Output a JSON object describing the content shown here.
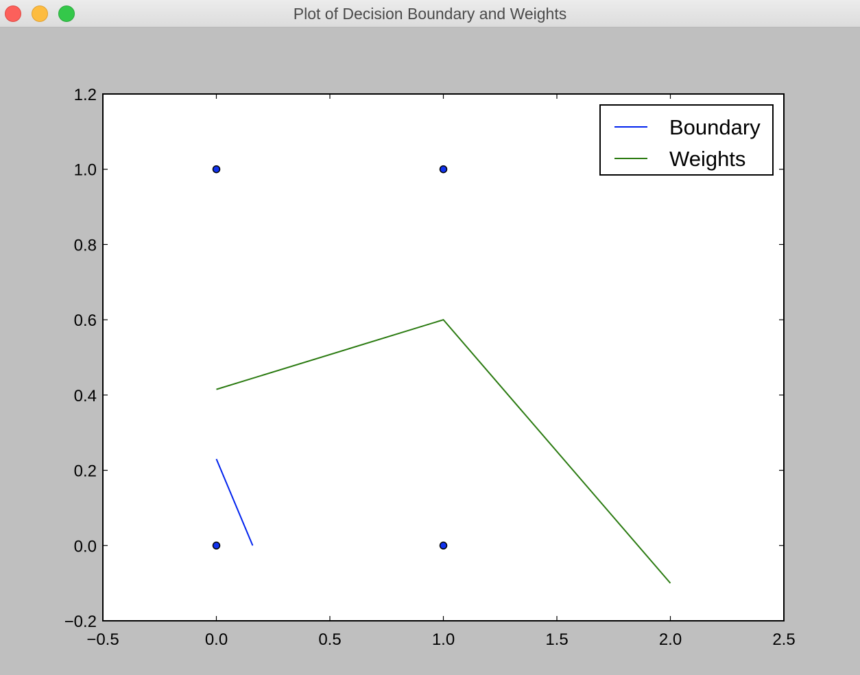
{
  "window": {
    "title": "Plot of Decision Boundary and Weights"
  },
  "colors": {
    "boundary": "#0022ee",
    "weights": "#2a7a10",
    "points_fill": "#1133ee",
    "background": "#bfbfbf"
  },
  "chart_data": {
    "type": "line",
    "title": "",
    "xlabel": "",
    "ylabel": "",
    "xlim": [
      -0.5,
      2.5
    ],
    "ylim": [
      -0.2,
      1.2
    ],
    "xticks": [
      -0.5,
      0.0,
      0.5,
      1.0,
      1.5,
      2.0,
      2.5
    ],
    "xtick_labels": [
      "−0.5",
      "0.0",
      "0.5",
      "1.0",
      "1.5",
      "2.0",
      "2.5"
    ],
    "yticks": [
      -0.2,
      0.0,
      0.2,
      0.4,
      0.6,
      0.8,
      1.0,
      1.2
    ],
    "ytick_labels": [
      "−0.2",
      "0.0",
      "0.2",
      "0.4",
      "0.6",
      "0.8",
      "1.0",
      "1.2"
    ],
    "grid": false,
    "legend_position": "top-right",
    "points": [
      {
        "x": 0,
        "y": 1
      },
      {
        "x": 1,
        "y": 1
      },
      {
        "x": 0,
        "y": 0
      },
      {
        "x": 1,
        "y": 0
      }
    ],
    "series": [
      {
        "name": "Boundary",
        "color": "#0022ee",
        "x": [
          0.0,
          0.16
        ],
        "y": [
          0.23,
          0.0
        ]
      },
      {
        "name": "Weights",
        "color": "#2a7a10",
        "x": [
          0.0,
          1.0,
          2.0
        ],
        "y": [
          0.415,
          0.6,
          -0.1
        ]
      }
    ]
  }
}
